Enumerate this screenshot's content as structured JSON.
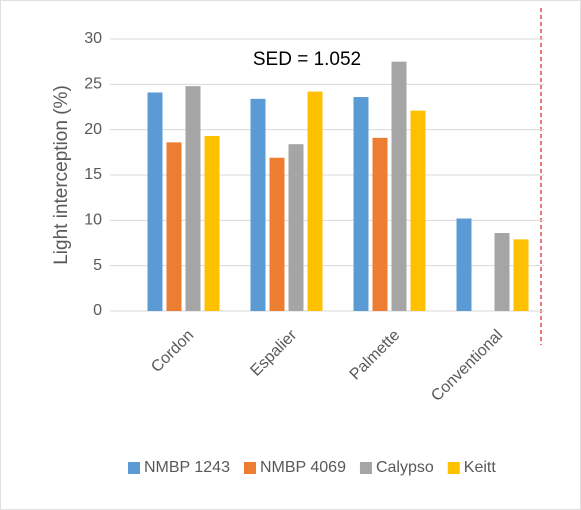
{
  "chart_data": {
    "type": "bar",
    "y_label": "Light interception (%)",
    "annotation": "SED = 1.052",
    "categories": [
      "Cordon",
      "Espalier",
      "Palmette",
      "Conventional"
    ],
    "series": [
      {
        "name": "NMBP 1243",
        "color": "#5b9bd5",
        "values": [
          24.1,
          23.4,
          23.6,
          10.2
        ]
      },
      {
        "name": "NMBP 4069",
        "color": "#ed7d31",
        "values": [
          18.6,
          16.9,
          19.1,
          null
        ]
      },
      {
        "name": "Calypso",
        "color": "#a5a5a5",
        "values": [
          24.8,
          18.4,
          27.5,
          8.6
        ]
      },
      {
        "name": "Keitt",
        "color": "#ffc000",
        "values": [
          19.3,
          24.2,
          22.1,
          7.9
        ]
      }
    ],
    "ylim": [
      0,
      30
    ],
    "yticks": [
      0,
      5,
      10,
      15,
      20,
      25,
      30
    ],
    "grid": true,
    "legend": "bottom"
  }
}
